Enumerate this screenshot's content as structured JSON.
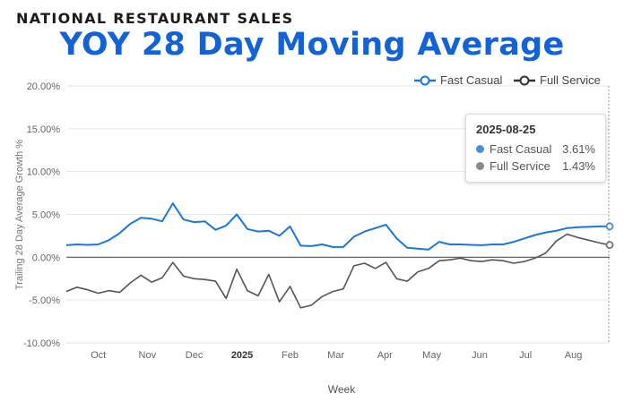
{
  "header": {
    "supertitle": "NATIONAL RESTAURANT SALES",
    "title": "YOY 28 Day Moving Average"
  },
  "tooltip": {
    "date": "2025-08-25",
    "rows": [
      {
        "name": "Fast Casual",
        "value": "3.61%"
      },
      {
        "name": "Full Service",
        "value": "1.43%"
      }
    ]
  },
  "chart_data": {
    "type": "line",
    "title": "YOY 28 Day Moving Average",
    "xlabel": "Week",
    "ylabel": "Trailing 28 Day Average Growth %",
    "ylim": [
      -10,
      20
    ],
    "yticks": [
      -10,
      -5,
      0,
      5,
      10,
      15,
      20
    ],
    "ytick_labels": [
      "-10.00%",
      "-5.00%",
      "0.00%",
      "5.00%",
      "10.00%",
      "15.00%",
      "20.00%"
    ],
    "x_positions": [
      1,
      2,
      3,
      4,
      5,
      6,
      7,
      8,
      9,
      10,
      11,
      12,
      13,
      14,
      15,
      16,
      17,
      18,
      19,
      20,
      21,
      22,
      23,
      24,
      25,
      26,
      27,
      28,
      29,
      30,
      31,
      32,
      33,
      34,
      35,
      36,
      37,
      38,
      39,
      40,
      41,
      42,
      43,
      44,
      45,
      46,
      47,
      48,
      49,
      50,
      51,
      52
    ],
    "xlim": [
      1,
      52
    ],
    "xticks": [
      {
        "label": "Oct",
        "pos": 4
      },
      {
        "label": "Nov",
        "pos": 8.6
      },
      {
        "label": "Dec",
        "pos": 13
      },
      {
        "label": "2025",
        "pos": 17.5
      },
      {
        "label": "Feb",
        "pos": 22
      },
      {
        "label": "Mar",
        "pos": 26.3
      },
      {
        "label": "Apr",
        "pos": 30.9
      },
      {
        "label": "May",
        "pos": 35.3
      },
      {
        "label": "Jun",
        "pos": 39.8
      },
      {
        "label": "Jul",
        "pos": 44.1
      },
      {
        "label": "Aug",
        "pos": 48.6
      }
    ],
    "legend_position": "top-right",
    "grid": true,
    "series": [
      {
        "name": "Fast Casual",
        "color": "#1a78d6",
        "values": [
          1.4,
          1.5,
          1.45,
          1.5,
          2.0,
          2.8,
          3.9,
          4.6,
          4.5,
          4.2,
          6.3,
          4.4,
          4.1,
          4.2,
          3.2,
          3.7,
          5.0,
          3.3,
          3.0,
          3.1,
          2.5,
          3.6,
          1.35,
          1.3,
          1.5,
          1.2,
          1.2,
          2.4,
          3.0,
          3.4,
          3.8,
          2.2,
          1.1,
          1.0,
          0.9,
          1.8,
          1.5,
          1.5,
          1.45,
          1.4,
          1.5,
          1.5,
          1.8,
          2.2,
          2.6,
          2.9,
          3.1,
          3.4,
          3.5,
          3.55,
          3.6,
          3.61
        ]
      },
      {
        "name": "Full Service",
        "color": "#555555",
        "values": [
          -4.0,
          -3.5,
          -3.8,
          -4.2,
          -3.9,
          -4.1,
          -3.0,
          -2.1,
          -2.9,
          -2.4,
          -0.6,
          -2.2,
          -2.5,
          -2.6,
          -2.8,
          -4.8,
          -1.4,
          -3.9,
          -4.5,
          -2.0,
          -5.2,
          -3.4,
          -5.9,
          -5.6,
          -4.6,
          -4.0,
          -3.7,
          -1.0,
          -0.7,
          -1.3,
          -0.6,
          -2.5,
          -2.8,
          -1.7,
          -1.3,
          -0.4,
          -0.3,
          -0.1,
          -0.4,
          -0.5,
          -0.3,
          -0.4,
          -0.7,
          -0.5,
          -0.1,
          0.5,
          1.9,
          2.7,
          2.3,
          2.0,
          1.7,
          1.43
        ]
      }
    ]
  }
}
